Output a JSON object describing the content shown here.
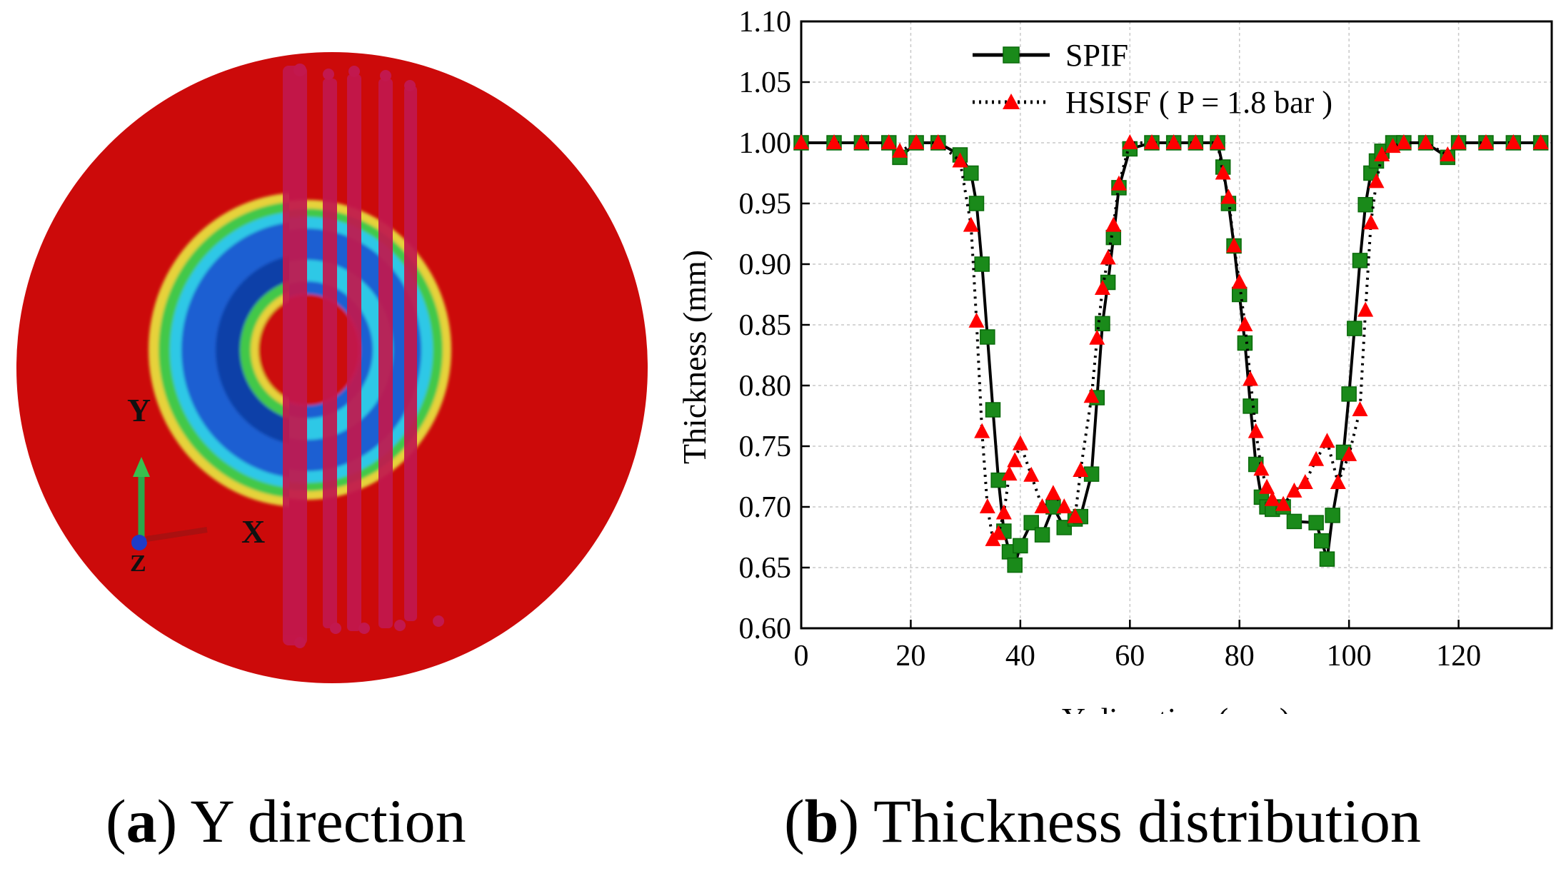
{
  "panel_a": {
    "caption_letter": "a",
    "caption_text": "Y direction",
    "axis_labels": {
      "y": "Y",
      "x": "X",
      "z": "Z"
    },
    "colors": {
      "outer": "#cc0a0a",
      "ring_yellow": "#e6d23a",
      "ring_green": "#42c84a",
      "ring_cyan": "#2ec8e6",
      "ring_blue": "#1b5fd2",
      "ring_deep": "#1040a8",
      "stripe": "#c2184e"
    }
  },
  "panel_b": {
    "caption_letter": "b",
    "caption_text": "Thickness distribution"
  },
  "chart_data": {
    "type": "line",
    "title": "Thickness distribution",
    "xlabel": "Y direction (mm)",
    "ylabel": "Thickness (mm)",
    "xlim": [
      0,
      137
    ],
    "ylim": [
      0.6,
      1.1
    ],
    "xticks": [
      0,
      20,
      40,
      60,
      80,
      100,
      120
    ],
    "yticks": [
      0.6,
      0.65,
      0.7,
      0.75,
      0.8,
      0.85,
      0.9,
      0.95,
      1.0,
      1.05,
      1.1
    ],
    "grid": true,
    "legend_position": "top-center",
    "series": [
      {
        "name": "SPIF",
        "color": "#008000",
        "line": "solid",
        "marker": "square",
        "x": [
          0,
          6,
          11,
          16,
          18,
          21,
          25,
          29,
          31,
          32,
          33,
          34,
          35,
          36,
          37,
          38,
          39,
          40,
          42,
          44,
          46,
          48,
          50,
          51,
          53,
          54,
          55,
          56,
          57,
          58,
          60,
          64,
          68,
          72,
          76,
          77,
          78,
          79,
          80,
          81,
          82,
          83,
          84,
          85,
          86,
          88,
          90,
          94,
          95,
          96,
          97,
          99,
          100,
          101,
          102,
          103,
          104,
          105,
          106,
          108,
          110,
          114,
          118,
          120,
          125,
          130,
          135
        ],
        "y": [
          1.0,
          1.0,
          1.0,
          1.0,
          0.988,
          1.0,
          1.0,
          0.99,
          0.975,
          0.95,
          0.9,
          0.84,
          0.78,
          0.722,
          0.68,
          0.663,
          0.652,
          0.668,
          0.687,
          0.677,
          0.7,
          0.683,
          0.69,
          0.692,
          0.727,
          0.79,
          0.851,
          0.885,
          0.922,
          0.963,
          0.995,
          1.0,
          1.0,
          1.0,
          1.0,
          0.98,
          0.95,
          0.915,
          0.875,
          0.835,
          0.783,
          0.735,
          0.708,
          0.7,
          0.698,
          0.7,
          0.688,
          0.687,
          0.672,
          0.657,
          0.693,
          0.745,
          0.793,
          0.847,
          0.903,
          0.949,
          0.975,
          0.985,
          0.993,
          1.0,
          1.0,
          1.0,
          0.988,
          1.0,
          1.0,
          1.0,
          1.0
        ]
      },
      {
        "name": "HSISF ( P = 1.8 bar )",
        "color": "#ff0000",
        "line": "dotted",
        "marker": "triangle",
        "x": [
          0,
          6,
          11,
          16,
          18,
          21,
          25,
          29,
          31,
          32,
          33,
          34,
          35,
          36,
          37,
          38,
          39,
          40,
          42,
          44,
          46,
          48,
          50,
          51,
          53,
          54,
          55,
          56,
          57,
          58,
          60,
          64,
          68,
          72,
          76,
          77,
          78,
          79,
          80,
          81,
          82,
          83,
          84,
          85,
          86,
          88,
          90,
          92,
          94,
          96,
          98,
          100,
          102,
          103,
          104,
          105,
          106,
          108,
          110,
          114,
          118,
          120,
          125,
          130,
          135
        ],
        "y": [
          1.0,
          1.0,
          1.0,
          1.0,
          0.993,
          1.0,
          1.0,
          0.985,
          0.932,
          0.853,
          0.762,
          0.7,
          0.673,
          0.678,
          0.695,
          0.727,
          0.738,
          0.752,
          0.726,
          0.7,
          0.711,
          0.7,
          0.692,
          0.73,
          0.791,
          0.839,
          0.88,
          0.905,
          0.932,
          0.966,
          1.0,
          1.0,
          1.0,
          1.0,
          1.0,
          0.975,
          0.955,
          0.915,
          0.885,
          0.85,
          0.805,
          0.762,
          0.731,
          0.716,
          0.706,
          0.702,
          0.713,
          0.72,
          0.739,
          0.754,
          0.72,
          0.743,
          0.78,
          0.862,
          0.934,
          0.968,
          0.99,
          0.997,
          1.0,
          1.0,
          0.99,
          1.0,
          1.0,
          1.0,
          1.0
        ]
      }
    ]
  }
}
